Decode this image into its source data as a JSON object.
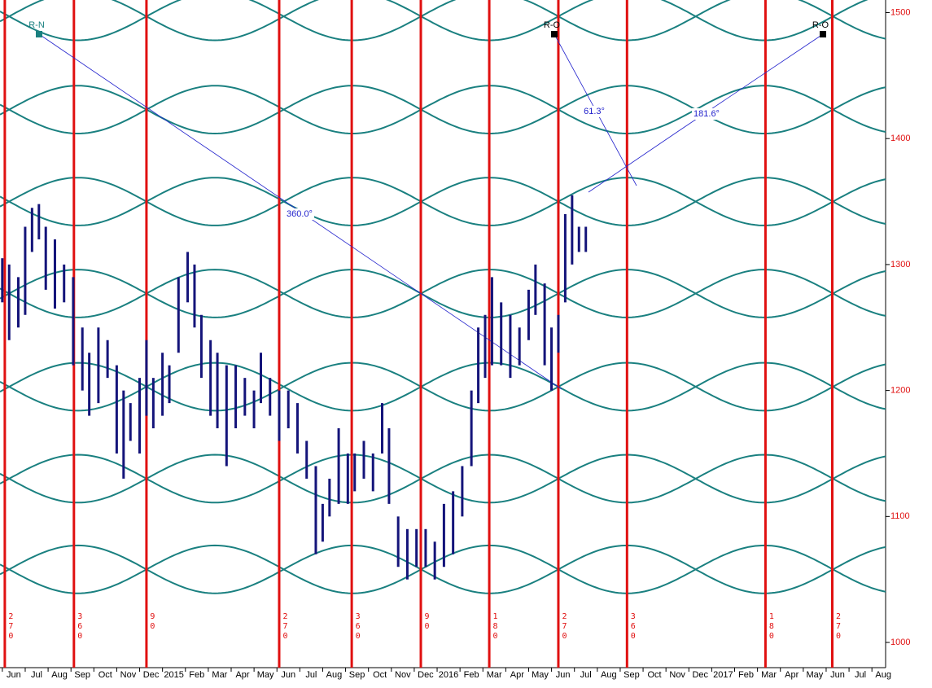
{
  "chart_data": {
    "type": "range_bar",
    "xlim": [
      -0.6,
      38.1
    ],
    "ylim": [
      980,
      1510
    ],
    "xticks": [
      {
        "value": 0,
        "label": "Jun"
      },
      {
        "value": 1,
        "label": "Jul"
      },
      {
        "value": 2,
        "label": "Aug"
      },
      {
        "value": 3,
        "label": "Sep"
      },
      {
        "value": 4,
        "label": "Oct"
      },
      {
        "value": 5,
        "label": "Nov"
      },
      {
        "value": 6,
        "label": "Dec"
      },
      {
        "value": 7,
        "label": "2015"
      },
      {
        "value": 8,
        "label": "Feb"
      },
      {
        "value": 9,
        "label": "Mar"
      },
      {
        "value": 10,
        "label": "Apr"
      },
      {
        "value": 11,
        "label": "May"
      },
      {
        "value": 12,
        "label": "Jun"
      },
      {
        "value": 13,
        "label": "Jul"
      },
      {
        "value": 14,
        "label": "Aug"
      },
      {
        "value": 15,
        "label": "Sep"
      },
      {
        "value": 16,
        "label": "Oct"
      },
      {
        "value": 17,
        "label": "Nov"
      },
      {
        "value": 18,
        "label": "Dec"
      },
      {
        "value": 19,
        "label": "2016"
      },
      {
        "value": 20,
        "label": "Feb"
      },
      {
        "value": 21,
        "label": "Mar"
      },
      {
        "value": 22,
        "label": "Apr"
      },
      {
        "value": 23,
        "label": "May"
      },
      {
        "value": 24,
        "label": "Jun"
      },
      {
        "value": 25,
        "label": "Jul"
      },
      {
        "value": 26,
        "label": "Aug"
      },
      {
        "value": 27,
        "label": "Sep"
      },
      {
        "value": 28,
        "label": "Oct"
      },
      {
        "value": 29,
        "label": "Nov"
      },
      {
        "value": 30,
        "label": "Dec"
      },
      {
        "value": 31,
        "label": "2017"
      },
      {
        "value": 32,
        "label": "Feb"
      },
      {
        "value": 33,
        "label": "Mar"
      },
      {
        "value": 34,
        "label": "Apr"
      },
      {
        "value": 35,
        "label": "May"
      },
      {
        "value": 36,
        "label": "Jun"
      },
      {
        "value": 37,
        "label": "Jul"
      },
      {
        "value": 38,
        "label": "Aug"
      }
    ],
    "yticks": [
      1000,
      1100,
      1200,
      1300,
      1400,
      1500
    ],
    "color": "#14147a",
    "x": [
      -0.5,
      -0.2,
      0.2,
      0.5,
      0.8,
      1.1,
      1.4,
      1.8,
      2.2,
      2.6,
      3.0,
      3.3,
      3.7,
      4.1,
      4.5,
      4.8,
      5.1,
      5.5,
      5.8,
      6.1,
      6.5,
      6.8,
      7.2,
      7.6,
      7.9,
      8.2,
      8.6,
      8.9,
      9.3,
      9.7,
      10.1,
      10.5,
      10.8,
      11.2,
      11.6,
      12.0,
      12.4,
      12.8,
      13.2,
      13.5,
      13.8,
      14.2,
      14.6,
      14.9,
      15.3,
      15.7,
      16.1,
      16.4,
      16.8,
      17.2,
      17.6,
      18.0,
      18.4,
      18.8,
      19.2,
      19.6,
      20.0,
      20.3,
      20.6,
      20.9,
      21.3,
      21.7,
      22.1,
      22.5,
      22.8,
      23.2,
      23.5,
      23.8,
      24.1,
      24.4,
      24.7,
      25.0
    ],
    "high": [
      1305,
      1300,
      1290,
      1330,
      1345,
      1348,
      1330,
      1320,
      1300,
      1290,
      1250,
      1230,
      1250,
      1240,
      1220,
      1200,
      1190,
      1210,
      1240,
      1210,
      1230,
      1220,
      1290,
      1310,
      1300,
      1260,
      1240,
      1230,
      1220,
      1220,
      1210,
      1200,
      1230,
      1210,
      1200,
      1200,
      1190,
      1160,
      1140,
      1110,
      1130,
      1170,
      1150,
      1150,
      1160,
      1150,
      1190,
      1170,
      1100,
      1090,
      1090,
      1090,
      1080,
      1110,
      1120,
      1140,
      1200,
      1250,
      1260,
      1290,
      1270,
      1260,
      1250,
      1280,
      1300,
      1285,
      1250,
      1260,
      1340,
      1355,
      1330,
      1330
    ],
    "low": [
      1270,
      1240,
      1250,
      1260,
      1310,
      1320,
      1280,
      1265,
      1270,
      1220,
      1200,
      1180,
      1190,
      1210,
      1150,
      1130,
      1160,
      1150,
      1180,
      1170,
      1180,
      1190,
      1230,
      1270,
      1250,
      1210,
      1180,
      1170,
      1140,
      1170,
      1180,
      1170,
      1190,
      1180,
      1160,
      1170,
      1150,
      1130,
      1070,
      1080,
      1100,
      1110,
      1110,
      1120,
      1130,
      1120,
      1150,
      1110,
      1060,
      1050,
      1060,
      1060,
      1050,
      1060,
      1070,
      1100,
      1140,
      1190,
      1210,
      1220,
      1220,
      1210,
      1220,
      1240,
      1260,
      1220,
      1200,
      1230,
      1270,
      1300,
      1310,
      1310
    ],
    "wave_centers": [
      1497,
      1423,
      1350,
      1277,
      1203,
      1130,
      1058
    ],
    "wave_color": "#1a8080",
    "cycle_lines": {
      "x": [
        -0.39,
        2.63,
        5.8,
        11.6,
        14.77,
        17.79,
        20.78,
        23.8,
        26.8,
        32.85,
        35.77
      ],
      "labels": [
        "270",
        "360",
        "90",
        "270",
        "360",
        "90",
        "180",
        "270",
        "360",
        "180",
        "270"
      ],
      "color": "#e01010"
    },
    "markers": [
      "R-N",
      "R-O",
      "R-O"
    ],
    "angle_labels": [
      "360.0°",
      "61.3°",
      "181.6°"
    ]
  }
}
